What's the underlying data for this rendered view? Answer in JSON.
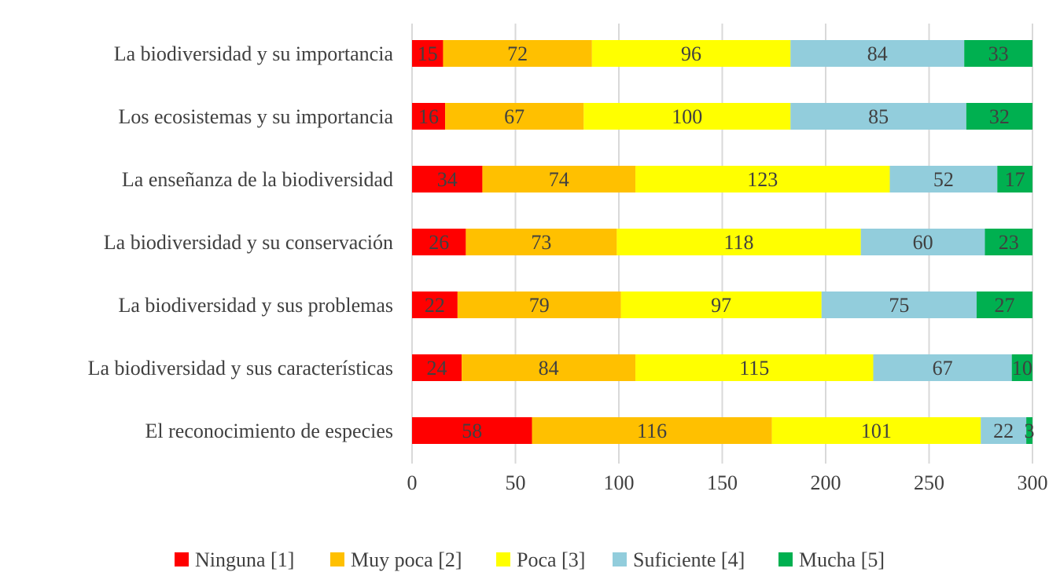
{
  "chart_data": {
    "type": "bar",
    "orientation": "horizontal",
    "stacked": true,
    "title": "",
    "xlabel": "",
    "ylabel": "",
    "xlim": [
      0,
      300
    ],
    "xticks": [
      0,
      50,
      100,
      150,
      200,
      250,
      300
    ],
    "grid": true,
    "legend_placement": "bottom",
    "categories": [
      "La biodiversidad y su importancia",
      "Los ecosistemas y su importancia",
      "La enseñanza de la biodiversidad",
      "La biodiversidad y su conservación",
      "La biodiversidad y sus problemas",
      "La biodiversidad y sus características",
      "El reconocimiento de especies"
    ],
    "series": [
      {
        "name": "Ninguna [1]",
        "color": "#FF0000",
        "values": [
          15,
          16,
          34,
          26,
          22,
          24,
          58
        ]
      },
      {
        "name": "Muy poca [2]",
        "color": "#FFC000",
        "values": [
          72,
          67,
          74,
          73,
          79,
          84,
          116
        ]
      },
      {
        "name": "Poca [3]",
        "color": "#FFFF00",
        "values": [
          96,
          100,
          123,
          118,
          97,
          115,
          101
        ]
      },
      {
        "name": "Suficiente [4]",
        "color": "#92CDDC",
        "values": [
          84,
          85,
          52,
          60,
          75,
          67,
          22
        ]
      },
      {
        "name": "Mucha [5]",
        "color": "#00B050",
        "values": [
          33,
          32,
          17,
          23,
          27,
          10,
          3
        ]
      }
    ]
  }
}
